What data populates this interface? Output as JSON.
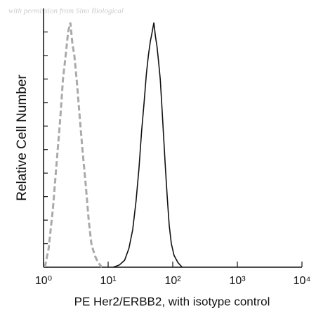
{
  "chart_data": {
    "type": "line",
    "watermark": "with permission from Sino Biological",
    "ylabel": "Relative Cell Number",
    "xlabel": "PE Her2/ERBB2, with isotype control",
    "xscale": "log",
    "xlim": [
      1,
      10000
    ],
    "xticks": [
      {
        "value": 1,
        "label": "10⁰"
      },
      {
        "value": 10,
        "label": "10¹"
      },
      {
        "value": 100,
        "label": "10²"
      },
      {
        "value": 1000,
        "label": "10³"
      },
      {
        "value": 10000,
        "label": "10⁴"
      }
    ],
    "ylim": [
      0,
      110
    ],
    "yticks": [
      0,
      10,
      20,
      30,
      40,
      50,
      60,
      70,
      80,
      90,
      100
    ],
    "series": [
      {
        "color": "#aaaaaa",
        "dash": "dashed",
        "x": [
          1.05,
          1.2,
          1.4,
          1.6,
          1.8,
          2.0,
          2.2,
          2.4,
          2.6,
          2.8,
          3.0,
          3.3,
          3.6,
          4.0,
          4.5,
          5.0,
          5.5,
          6.2,
          7.0,
          8.0
        ],
        "values": [
          0,
          8,
          25,
          45,
          62,
          80,
          90,
          100,
          104,
          95,
          90,
          78,
          65,
          50,
          35,
          20,
          10,
          5,
          2,
          0
        ]
      },
      {
        "color": "#111111",
        "dash": "solid",
        "x": [
          12,
          15,
          18,
          21,
          24,
          27,
          30,
          33,
          36,
          39,
          42,
          45,
          48,
          51,
          54,
          57,
          60,
          64,
          68,
          72,
          77,
          82,
          88,
          95,
          105,
          120,
          140
        ],
        "values": [
          0,
          1,
          3,
          8,
          16,
          28,
          42,
          58,
          70,
          82,
          90,
          96,
          100,
          104,
          98,
          94,
          88,
          80,
          68,
          56,
          42,
          30,
          18,
          10,
          5,
          2,
          0
        ]
      }
    ]
  }
}
